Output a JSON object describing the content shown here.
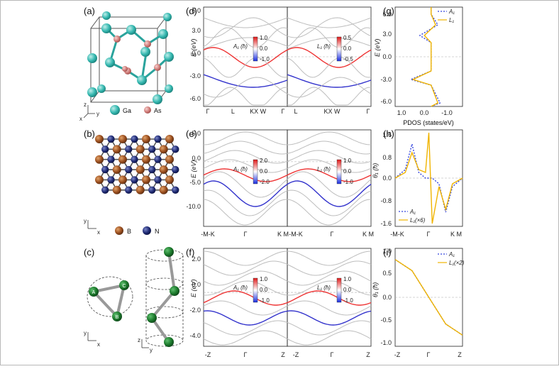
{
  "figure": {
    "panel_labels": [
      "(a)",
      "(b)",
      "(c)",
      "(d)",
      "(e)",
      "(f)",
      "(g)",
      "(h)",
      "(i)"
    ],
    "a": {
      "legend": [
        "Ga",
        "As"
      ],
      "axes": [
        "z",
        "x",
        "y"
      ]
    },
    "b": {
      "legend": [
        "B",
        "N"
      ],
      "axes": [
        "y",
        "x"
      ]
    },
    "c": {
      "site_labels": [
        "A",
        "B",
        "C"
      ],
      "axes": [
        "y",
        "x",
        "z",
        "y"
      ]
    },
    "d": {
      "ylabel": "E (eV)",
      "yticks": [
        "6.0",
        "3.0",
        "0.0",
        "-3.0",
        "-6.0"
      ],
      "xticks_left": [
        "Γ",
        "L",
        "KX W",
        "Γ"
      ],
      "xticks_right": [
        "L",
        "KX W",
        "Γ"
      ],
      "cb_left": {
        "title": "A₁ (ħ)",
        "ticks": [
          "1.0",
          "0.0",
          "-1.0"
        ]
      },
      "cb_right": {
        "title": "L₁ (ħ)",
        "ticks": [
          "0.5",
          "0.0",
          "-0.5"
        ]
      }
    },
    "e": {
      "ylabel": "E (eV)",
      "yticks": [
        "5.0",
        "0.0",
        "-5.0",
        "-10.0"
      ],
      "xticks_left": [
        "-M-K",
        "Γ",
        "K M"
      ],
      "xticks_right": [
        "-M-K",
        "Γ",
        "K M"
      ],
      "cb_left": {
        "title": "A₁ (ħ)",
        "ticks": [
          "2.0",
          "0.0",
          "-2.0"
        ]
      },
      "cb_right": {
        "title": "L₁ (ħ)",
        "ticks": [
          "1.0",
          "0.0",
          "-1.0"
        ]
      }
    },
    "f": {
      "ylabel": "E (eV)",
      "yticks": [
        "2.0",
        "0.0",
        "-2.0",
        "-4.0"
      ],
      "xticks_left": [
        "-Z",
        "Γ",
        "Z"
      ],
      "xticks_right": [
        "-Z",
        "Γ",
        "Z"
      ],
      "cb_left": {
        "title": "A₁ (ħ)",
        "ticks": [
          "1.0",
          "0.0",
          "-1.0"
        ]
      },
      "cb_right": {
        "title": "L₁ (ħ)",
        "ticks": [
          "1.0",
          "0.0",
          "-1.0"
        ]
      }
    },
    "g": {
      "ylabel": "E (eV)",
      "xlabel": "PDOS (states/eV)",
      "yticks": [
        "6.0",
        "3.0",
        "0.0",
        "-3.0",
        "-6.0"
      ],
      "xticks": [
        "1.0",
        "0.0",
        "-1.0"
      ],
      "legend": [
        "A₁",
        "L₁"
      ]
    },
    "h": {
      "ylabel": "θ₁ (ħ)",
      "yticks": [
        "1.6",
        "0.8",
        "0.0",
        "-0.8",
        "-1.6"
      ],
      "xticks": [
        "-M-K",
        "Γ",
        "K M"
      ],
      "legend": [
        "A₁",
        "L₁(×6)"
      ]
    },
    "i": {
      "ylabel": "θ₁ (ħ)",
      "yticks": [
        "1.0",
        "0.5",
        "0.0",
        "-0.5",
        "-1.0"
      ],
      "xticks": [
        "-Z",
        "Γ",
        "Z"
      ],
      "legend": [
        "A₁",
        "L₁(×2)"
      ]
    }
  },
  "chart_data": [
    {
      "type": "line",
      "panel": "(g)",
      "xlabel": "PDOS (states/eV)",
      "ylabel": "E (eV)",
      "ylim": [
        -7,
        7
      ],
      "xlim": [
        1.6,
        -1.4
      ],
      "series": [
        {
          "name": "A₁",
          "y": [
            -7.0,
            -6.5,
            -4.0,
            -3.2,
            -2.0,
            0.0,
            2.0,
            3.0,
            4.5,
            6.0,
            7.0
          ],
          "values": [
            0.0,
            -0.4,
            0.0,
            0.9,
            0.0,
            0.0,
            0.0,
            0.5,
            -0.3,
            0.0,
            0.0
          ]
        },
        {
          "name": "L₁",
          "y": [
            -7.0,
            -6.5,
            -4.0,
            -3.2,
            -2.0,
            0.0,
            2.0,
            3.0,
            4.5,
            6.0,
            7.0
          ],
          "values": [
            0.0,
            -0.3,
            0.0,
            0.8,
            0.0,
            0.0,
            0.0,
            0.3,
            -0.2,
            0.0,
            0.0
          ]
        }
      ]
    },
    {
      "type": "line",
      "panel": "(h)",
      "ylabel": "θ₁ (ħ)",
      "categories": [
        "-M-K",
        "Γ",
        "K M"
      ],
      "ylim": [
        -1.7,
        1.7
      ],
      "series": [
        {
          "name": "A₁",
          "x": [
            0.0,
            0.15,
            0.25,
            0.35,
            0.45,
            0.5,
            0.55,
            0.65,
            0.75,
            0.85,
            1.0
          ],
          "values": [
            0.0,
            0.3,
            1.2,
            0.2,
            0.0,
            0.0,
            0.0,
            -0.2,
            -1.2,
            -0.3,
            0.0
          ]
        },
        {
          "name": "L₁(×6)",
          "x": [
            0.0,
            0.15,
            0.25,
            0.35,
            0.45,
            0.5,
            0.55,
            0.65,
            0.75,
            0.85,
            1.0
          ],
          "values": [
            0.0,
            0.2,
            0.9,
            0.3,
            0.2,
            1.6,
            -1.6,
            -0.3,
            -1.1,
            -0.2,
            0.0
          ]
        }
      ]
    },
    {
      "type": "line",
      "panel": "(i)",
      "ylabel": "θ₁ (ħ)",
      "categories": [
        "-Z",
        "Γ",
        "Z"
      ],
      "ylim": [
        -1.1,
        1.1
      ],
      "series": [
        {
          "name": "A₁",
          "x": [
            0.0,
            0.25,
            0.5,
            0.75,
            1.0
          ],
          "values": [
            0.85,
            0.6,
            0.0,
            -0.6,
            -0.85
          ]
        },
        {
          "name": "L₁(×2)",
          "x": [
            0.0,
            0.25,
            0.5,
            0.75,
            1.0
          ],
          "values": [
            0.85,
            0.6,
            0.0,
            -0.6,
            -0.85
          ]
        }
      ]
    }
  ]
}
